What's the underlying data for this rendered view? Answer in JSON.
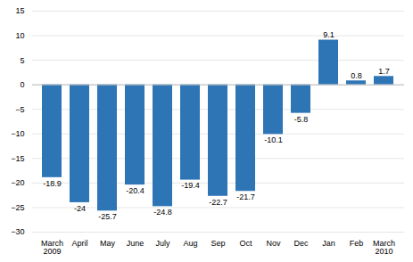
{
  "chart_data": {
    "type": "bar",
    "categories": [
      "March\n2009",
      "April",
      "May",
      "June",
      "July",
      "Aug",
      "Sep",
      "Oct",
      "Nov",
      "Dec",
      "Jan",
      "Feb",
      "March\n2010"
    ],
    "values": [
      -18.9,
      -24,
      -25.7,
      -20.4,
      -24.8,
      -19.4,
      -22.7,
      -21.7,
      -10.1,
      -5.8,
      9.1,
      0.8,
      1.7
    ],
    "color": "#2E75B6",
    "ylim": [
      -30,
      15
    ],
    "yticks": [
      -30,
      -25,
      -20,
      -15,
      -10,
      -5,
      0,
      5,
      10,
      15
    ],
    "grid": true,
    "data_labels": true
  }
}
